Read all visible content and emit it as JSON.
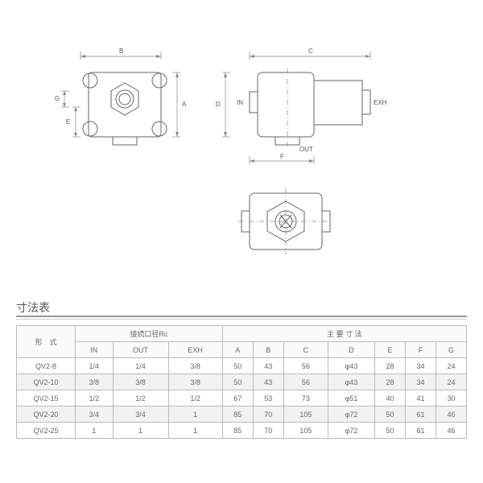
{
  "section_title": "寸法表",
  "diagram": {
    "labels": {
      "dim_A": "A",
      "dim_B": "B",
      "dim_C": "C",
      "dim_D": "D",
      "dim_E": "E",
      "dim_F": "F",
      "dim_G": "G",
      "port_IN": "IN",
      "port_OUT": "OUT",
      "port_EXH": "EXH"
    },
    "line_color": "#666",
    "dim_color": "#888",
    "bg": "#ffffff"
  },
  "table": {
    "header_group_model": "形　式",
    "header_group_port": "接続口径Rc",
    "header_group_dims": "主 要 寸 法",
    "columns_port": [
      "IN",
      "OUT",
      "EXH"
    ],
    "columns_dims": [
      "A",
      "B",
      "C",
      "D",
      "E",
      "F",
      "G"
    ],
    "rows": [
      {
        "model": "QV2-8",
        "IN": "1/4",
        "OUT": "1/4",
        "EXH": "3/8",
        "A": "50",
        "B": "43",
        "C": "56",
        "D": "φ43",
        "E": "28",
        "F": "34",
        "G": "24"
      },
      {
        "model": "QV2-10",
        "IN": "3/8",
        "OUT": "3/8",
        "EXH": "3/8",
        "A": "50",
        "B": "43",
        "C": "56",
        "D": "φ43",
        "E": "28",
        "F": "34",
        "G": "24"
      },
      {
        "model": "QV2-15",
        "IN": "1/2",
        "OUT": "1/2",
        "EXH": "1/2",
        "A": "67",
        "B": "53",
        "C": "73",
        "D": "φ51",
        "E": "40",
        "F": "41",
        "G": "30"
      },
      {
        "model": "QV2-20",
        "IN": "3/4",
        "OUT": "3/4",
        "EXH": "1",
        "A": "85",
        "B": "70",
        "C": "105",
        "D": "φ72",
        "E": "50",
        "F": "61",
        "G": "46"
      },
      {
        "model": "QV2-25",
        "IN": "1",
        "OUT": "1",
        "EXH": "1",
        "A": "85",
        "B": "70",
        "C": "105",
        "D": "φ72",
        "E": "50",
        "F": "61",
        "G": "46"
      }
    ]
  }
}
